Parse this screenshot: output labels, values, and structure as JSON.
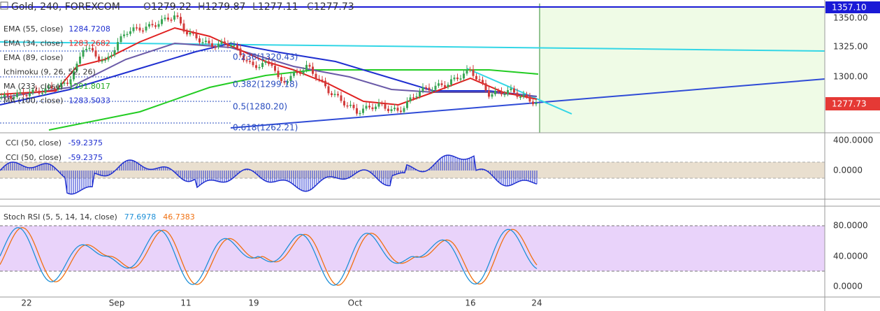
{
  "header": {
    "symbol": "Gold, 240, FOREXCOM",
    "ohlc": [
      {
        "label": "O",
        "value": "1279.22"
      },
      {
        "label": "H",
        "value": "1279.87"
      },
      {
        "label": "L",
        "value": "1277.11"
      },
      {
        "label": "C",
        "value": "1277.73"
      }
    ]
  },
  "indicators": [
    {
      "name": "EMA (55, close)",
      "value": "1284.7208"
    },
    {
      "name": "EMA (34, close)",
      "value": "1283.2682"
    },
    {
      "name": "EMA (89, close)",
      "value": ""
    },
    {
      "name": "Ichimoku (9, 26, 52, 26)",
      "value": ""
    },
    {
      "name": "MA (233, close)",
      "value": "1291.8017"
    },
    {
      "name": "MA (100, close)",
      "value": "1283.5033"
    }
  ],
  "fibonacci": [
    "0.236(1320.43)",
    "0.382(1299.18)",
    "0.5(1280.20)",
    "0.618(1262.21)"
  ],
  "price_axis": {
    "ticks": [
      "1350.00",
      "1325.00",
      "1300.00"
    ],
    "top_badge": "1357.10",
    "last_badge": "1277.73"
  },
  "cci": {
    "labels": [
      {
        "name": "CCI (50, close)",
        "value": "-59.2375"
      },
      {
        "name": "CCI (50, close)",
        "value": "-59.2375"
      }
    ],
    "ticks": [
      "400.0000",
      "0.0000"
    ]
  },
  "stoch": {
    "name": "Stoch RSI (5, 5, 14, 14, close)",
    "k": "77.6978",
    "d": "46.7383",
    "ticks": [
      "80.0000",
      "40.0000",
      "0.0000"
    ]
  },
  "dates": [
    "22",
    "Sep",
    "11",
    "19",
    "Oct",
    "16",
    "24"
  ]
}
